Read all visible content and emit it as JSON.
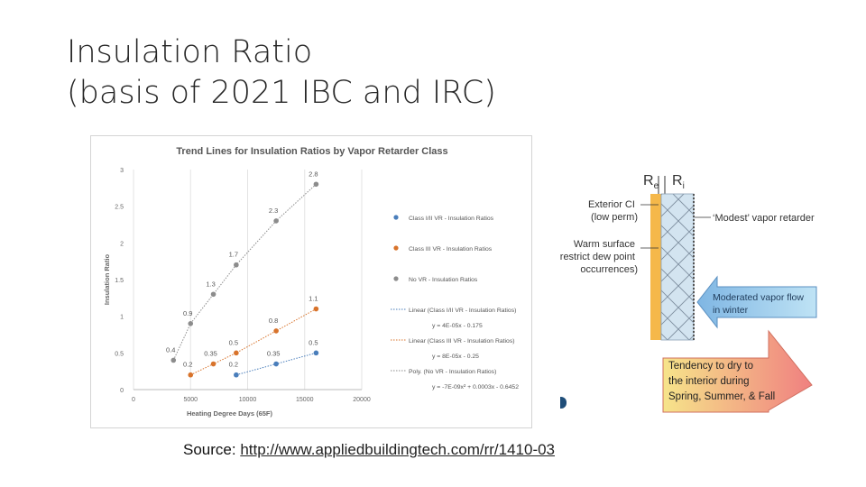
{
  "slide": {
    "title_line1": "Insulation Ratio",
    "title_line2": "(basis of 2021 IBC and IRC)",
    "source_label": "Source: ",
    "source_url": "http://www.appliedbuildingtech.com/rr/1410-03"
  },
  "diagram": {
    "re_label": "R",
    "re_sub": "e",
    "ri_label": "R",
    "ri_sub": "i",
    "ext_ci_line1": "Exterior CI",
    "ext_ci_line2": "(low perm)",
    "warm_line1": "Warm surface",
    "warm_line2": "restrict dew point",
    "warm_line3": "occurrences)",
    "modest_vr": "‘Modest’ vapor retarder",
    "flow_line1": "Moderated vapor flow",
    "flow_line2": "in winter",
    "dry_line1": "Tendency to dry to",
    "dry_line2": "the interior during",
    "dry_line3": "Spring, Summer, & Fall",
    "colors": {
      "exterior": "#f5b84a",
      "flow_arrow": "#a9d4f0",
      "dry_arrow_start": "#f6e48a",
      "dry_arrow_end": "#f08080",
      "insulation": "#d3e4f0"
    }
  },
  "chart_data": {
    "type": "scatter",
    "title": "Trend Lines for Insulation Ratios by Vapor Retarder Class",
    "xlabel": "Heating Degree Days (65F)",
    "ylabel": "Insulation Ratio",
    "xlim": [
      0,
      20000
    ],
    "ylim": [
      0,
      3
    ],
    "x_ticks": [
      0,
      5000,
      10000,
      15000,
      20000
    ],
    "y_ticks": [
      0,
      0.5,
      1,
      1.5,
      2,
      2.5,
      3
    ],
    "grid": "vertical",
    "legend_position": "right",
    "series": [
      {
        "name": "Class I/II VR - Insulation Ratios",
        "color": "#4a7ebb",
        "x": [
          9000,
          12500,
          16000
        ],
        "y": [
          0.2,
          0.35,
          0.5
        ],
        "labels": [
          "0.2",
          "0.35",
          "0.5"
        ]
      },
      {
        "name": "Class III VR - Insulation Ratios",
        "color": "#d8732b",
        "x": [
          5000,
          7000,
          9000,
          12500,
          16000
        ],
        "y": [
          0.2,
          0.35,
          0.5,
          0.8,
          1.1
        ],
        "labels": [
          "0.2",
          "0.35",
          "0.5",
          "0.8",
          "1.1"
        ]
      },
      {
        "name": "No VR - Insulation Ratios",
        "color": "#8c8c8c",
        "x": [
          3500,
          5000,
          7000,
          9000,
          12500,
          16000
        ],
        "y": [
          0.4,
          0.9,
          1.3,
          1.7,
          2.3,
          2.8
        ],
        "labels": [
          "0.4",
          "0.9",
          "1.3",
          "1.7",
          "2.3",
          "2.8"
        ]
      }
    ],
    "trendlines": [
      {
        "name": "Linear (Class I/II VR - Insulation Ratios)",
        "equation": "y = 4E-05x - 0.175",
        "color": "#4a7ebb"
      },
      {
        "name": "Linear (Class III VR - Insulation Ratios)",
        "equation": "y = 8E-05x - 0.25",
        "color": "#d8732b"
      },
      {
        "name": "Poly. (No VR - Insulation Ratios)",
        "equation": "y = -7E-09x² + 0.0003x - 0.6452",
        "color": "#8c8c8c"
      }
    ]
  }
}
